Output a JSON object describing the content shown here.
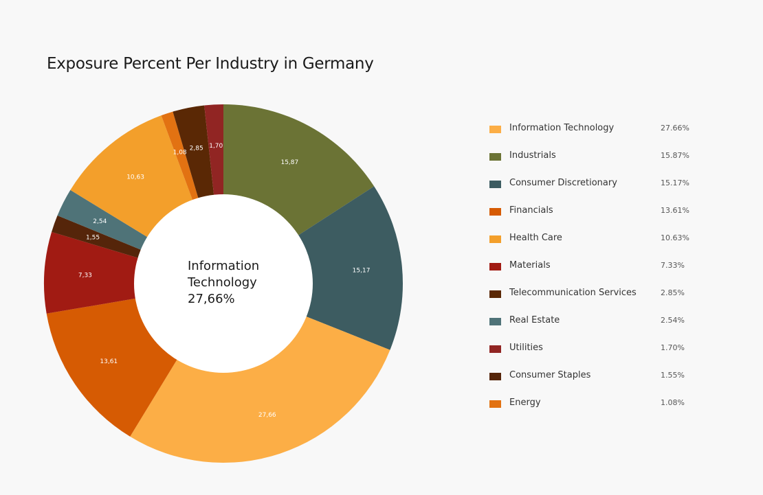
{
  "title": "Exposure Percent Per Industry in Germany",
  "center": {
    "line1": "Information",
    "line2": "Technology",
    "line3": "27,66%"
  },
  "chart_data": {
    "type": "pie",
    "variant": "donut",
    "title": "Exposure Percent Per Industry in Germany",
    "center_text": "Information Technology 27,66%",
    "start_at": "top",
    "direction": "clockwise",
    "slices_in_draw_order": [
      {
        "name": "Industrials",
        "value": 15.87,
        "label": "15,87",
        "color": "#6b7335"
      },
      {
        "name": "Consumer Discretionary",
        "value": 15.17,
        "label": "15,17",
        "color": "#3d5c61"
      },
      {
        "name": "Information Technology",
        "value": 27.66,
        "label": "27,66",
        "color": "#fcae46"
      },
      {
        "name": "Financials",
        "value": 13.61,
        "label": "13,61",
        "color": "#d65b03"
      },
      {
        "name": "Materials",
        "value": 7.33,
        "label": "7,33",
        "color": "#a11b13"
      },
      {
        "name": "Consumer Staples",
        "value": 1.55,
        "label": "1,55",
        "color": "#55250a"
      },
      {
        "name": "Real Estate",
        "value": 2.54,
        "label": "2,54",
        "color": "#4f7378"
      },
      {
        "name": "Health Care",
        "value": 10.63,
        "label": "10,63",
        "color": "#f39f2b"
      },
      {
        "name": "Energy",
        "value": 1.08,
        "label": "1,08",
        "color": "#e27212"
      },
      {
        "name": "Telecommunication Services",
        "value": 2.85,
        "label": "2,85",
        "color": "#5a2805"
      },
      {
        "name": "Utilities",
        "value": 1.7,
        "label": "1,70",
        "color": "#912523"
      }
    ],
    "legend_position": "right"
  },
  "legend": [
    {
      "name": "Information Technology",
      "value": "27.66%",
      "color": "#fcae46"
    },
    {
      "name": "Industrials",
      "value": "15.87%",
      "color": "#6b7335"
    },
    {
      "name": "Consumer Discretionary",
      "value": "15.17%",
      "color": "#3d5c61"
    },
    {
      "name": "Financials",
      "value": "13.61%",
      "color": "#d65b03"
    },
    {
      "name": "Health Care",
      "value": "10.63%",
      "color": "#f39f2b"
    },
    {
      "name": "Materials",
      "value": "7.33%",
      "color": "#a11b13"
    },
    {
      "name": "Telecommunication Services",
      "value": "2.85%",
      "color": "#5a2805"
    },
    {
      "name": "Real Estate",
      "value": "2.54%",
      "color": "#4f7378"
    },
    {
      "name": "Utilities",
      "value": "1.70%",
      "color": "#912523"
    },
    {
      "name": "Consumer Staples",
      "value": "1.55%",
      "color": "#55250a"
    },
    {
      "name": "Energy",
      "value": "1.08%",
      "color": "#e27212"
    }
  ]
}
